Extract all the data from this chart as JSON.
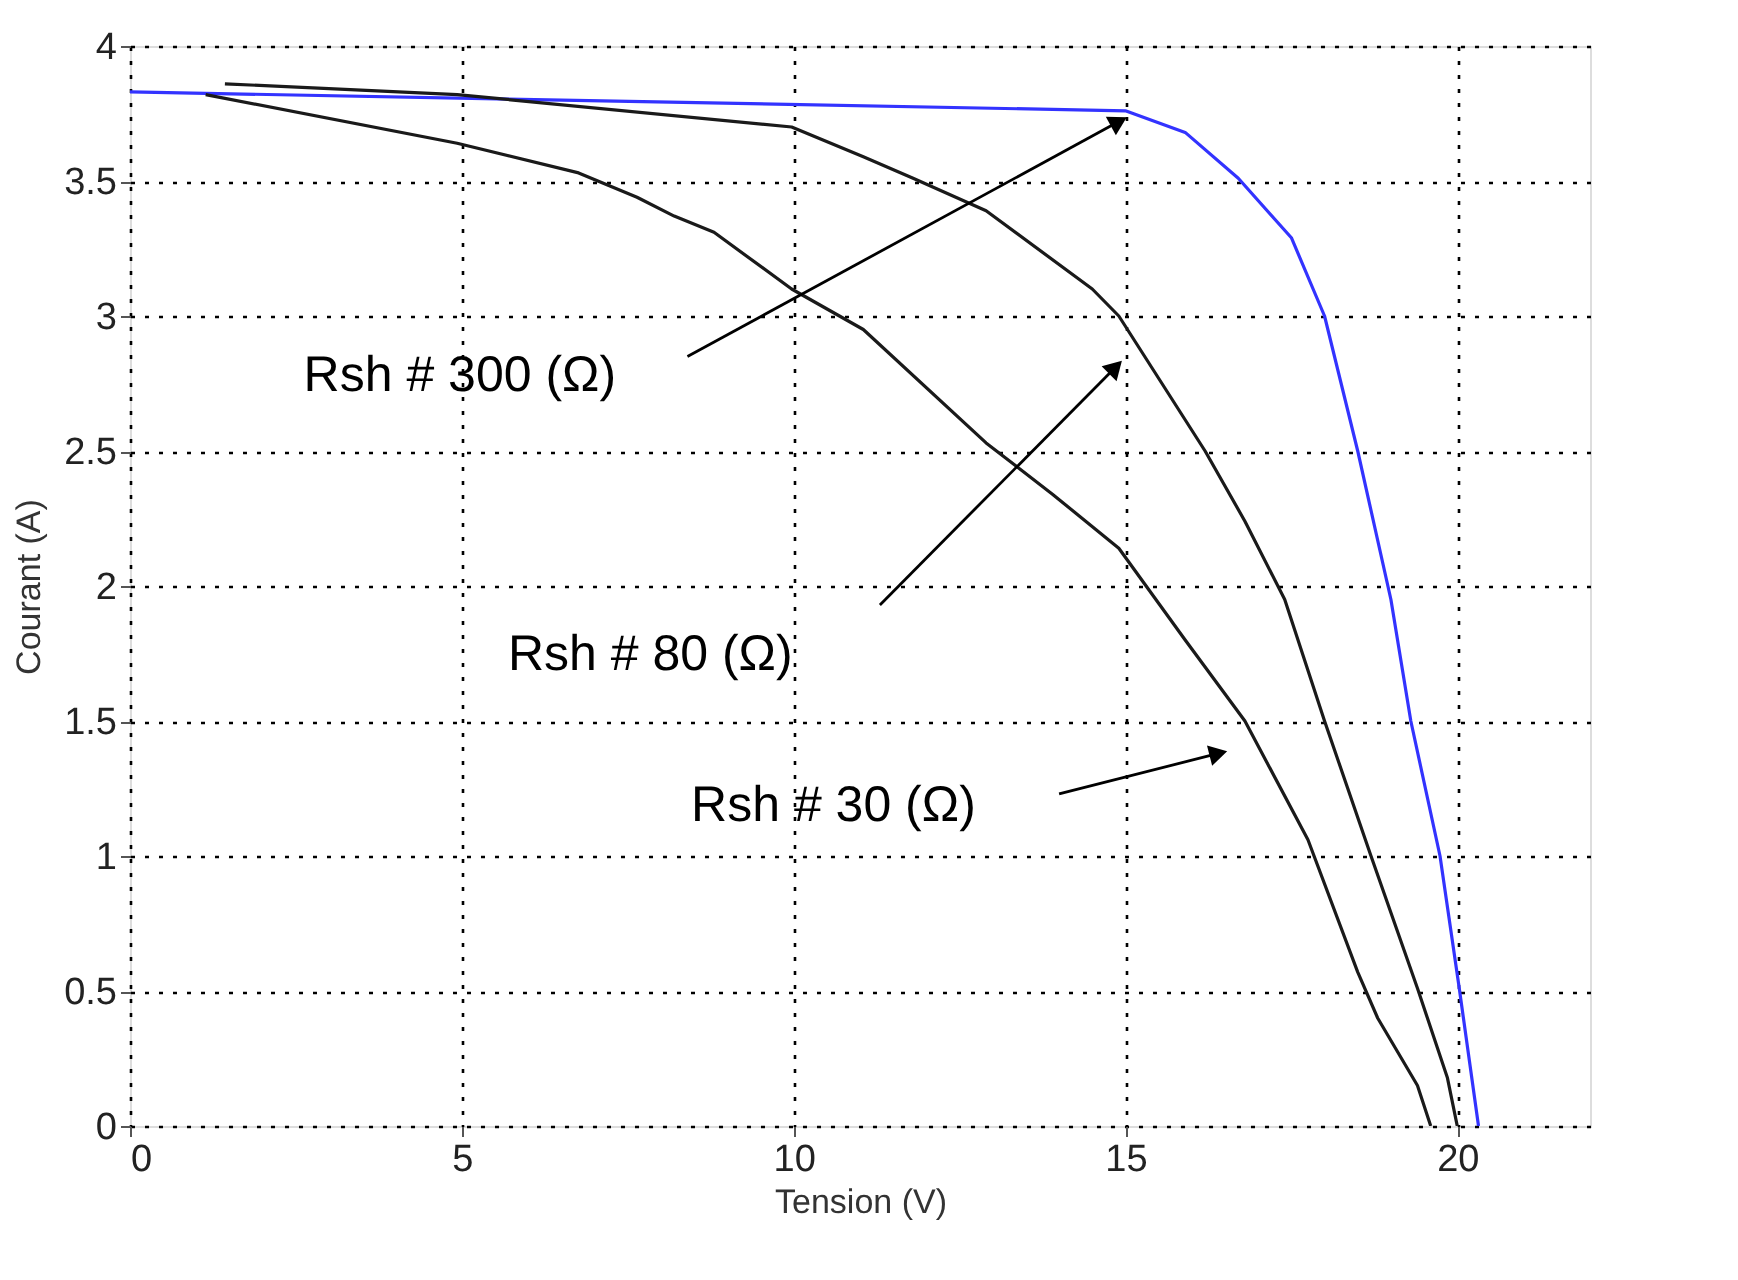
{
  "chart_data": {
    "type": "line",
    "xlabel": "Tension (V)",
    "ylabel": "Courant (A)",
    "xlim": [
      0,
      22
    ],
    "xticks": [
      0,
      5,
      10,
      15,
      20
    ],
    "ylim": [
      0,
      4
    ],
    "yticks": [
      0,
      0.5,
      1,
      1.5,
      2,
      2.5,
      3,
      3.5,
      4
    ],
    "grid": true,
    "line_style": "solid",
    "marker": "none",
    "series": [
      {
        "color": "#3333ff",
        "x": [
          0,
          15,
          15.9,
          16.7,
          17.5,
          18.0,
          18.5,
          19.0,
          19.3,
          19.74,
          20.03,
          20.32
        ],
        "values": [
          3.83,
          3.76,
          3.68,
          3.51,
          3.29,
          3.0,
          2.5,
          1.95,
          1.5,
          1.0,
          0.51,
          0
        ]
      },
      {
        "color": "#1a1a1a",
        "x": [
          1.43,
          4.93,
          9.97,
          11.05,
          11.8,
          12.9,
          14.5,
          14.9,
          16.2,
          16.8,
          17.4,
          18.0,
          18.7,
          19.4,
          19.85,
          20.0
        ],
        "values": [
          3.86,
          3.82,
          3.7,
          3.59,
          3.51,
          3.39,
          3.1,
          3.0,
          2.5,
          2.24,
          1.95,
          1.5,
          1.0,
          0.51,
          0.18,
          0
        ]
      },
      {
        "color": "#1a1a1a",
        "x": [
          1.14,
          4.93,
          6.76,
          7.64,
          8.2,
          8.8,
          9.97,
          11.05,
          12.9,
          13.9,
          14.9,
          15.9,
          16.8,
          17.75,
          18.5,
          18.8,
          19.4,
          19.6
        ],
        "values": [
          3.82,
          3.64,
          3.53,
          3.44,
          3.37,
          3.31,
          3.1,
          2.95,
          2.53,
          2.34,
          2.14,
          1.8,
          1.5,
          1.06,
          0.57,
          0.4,
          0.15,
          0
        ]
      }
    ],
    "annotations": [
      "Rsh # 300 (Ω)",
      "Rsh # 80 (Ω)",
      "Rsh # 30 (Ω)"
    ]
  }
}
